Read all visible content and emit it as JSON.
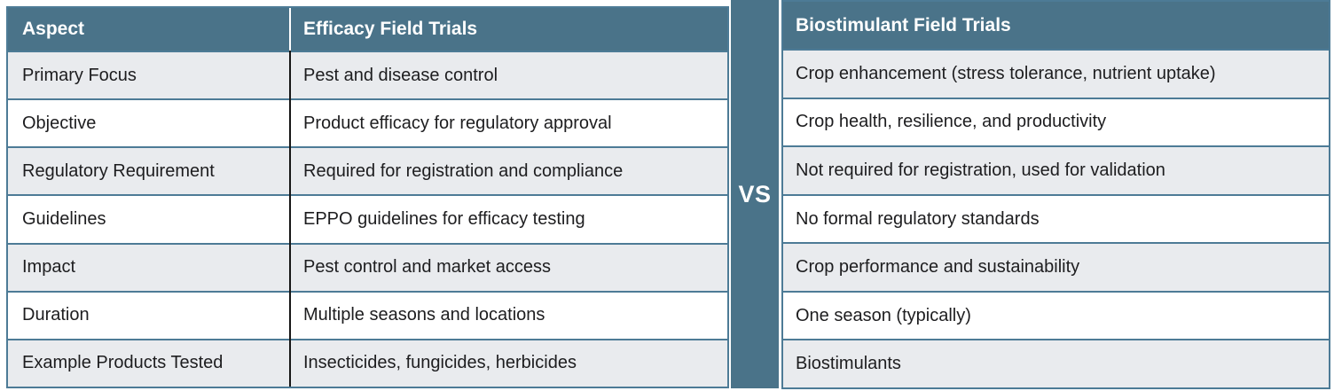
{
  "left_table": {
    "aspect_header": "Aspect",
    "value_header": "Efficacy Field Trials",
    "rows": [
      {
        "aspect": "Primary Focus",
        "value": "Pest and disease control"
      },
      {
        "aspect": "Objective",
        "value": "Product efficacy for regulatory approval"
      },
      {
        "aspect": "Regulatory Requirement",
        "value": "Required for registration and compliance"
      },
      {
        "aspect": "Guidelines",
        "value": "EPPO guidelines for efficacy testing"
      },
      {
        "aspect": "Impact",
        "value": "Pest control and market access"
      },
      {
        "aspect": "Duration",
        "value": "Multiple seasons and locations"
      },
      {
        "aspect": "Example Products Tested",
        "value": "Insecticides, fungicides, herbicides"
      }
    ]
  },
  "divider": {
    "label": "VS"
  },
  "right_table": {
    "header": "Biostimulant Field Trials",
    "rows": [
      "Crop enhancement (stress tolerance, nutrient uptake)",
      "Crop health, resilience, and productivity",
      "Not required for registration, used for validation",
      "No formal regulatory standards",
      "Crop performance and sustainability",
      "One season (typically)",
      "Biostimulants"
    ]
  },
  "colors": {
    "header_bg": "#4a7389",
    "row_alt_bg": "#e9ebee",
    "row_bg": "#ffffff",
    "border_teal": "#4d7b96",
    "column_line": "#161616",
    "text": "#1d1d1f",
    "header_text": "#ffffff"
  }
}
